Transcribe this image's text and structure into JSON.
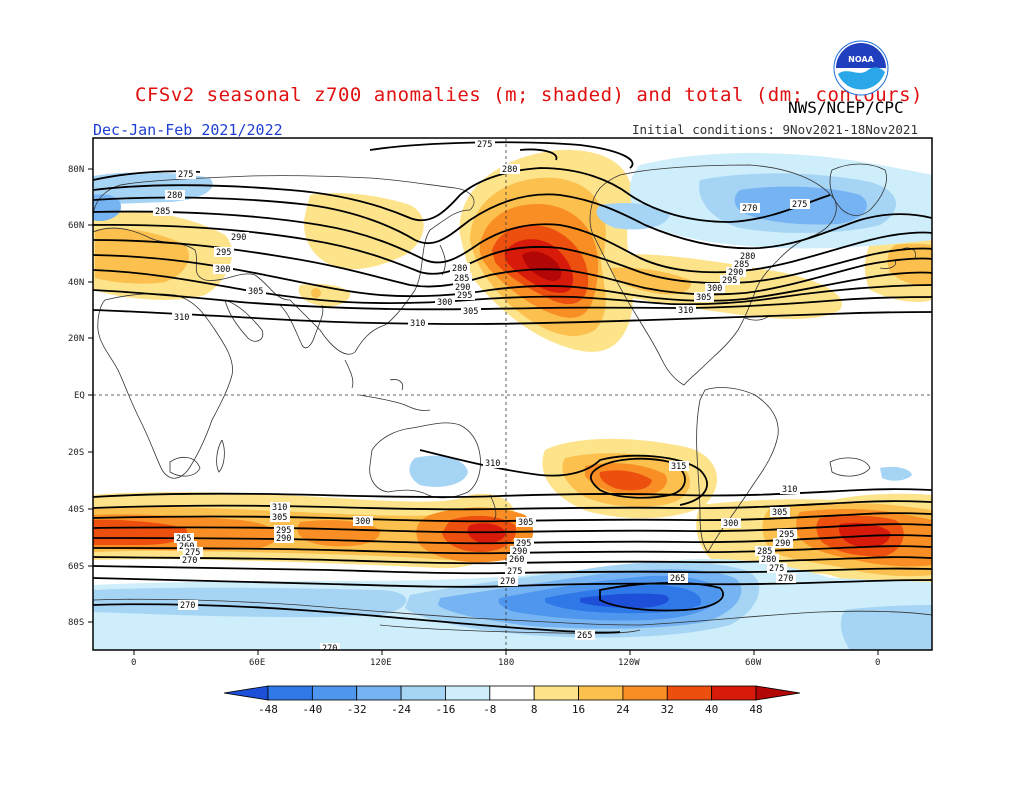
{
  "title": "CFSv2 seasonal z700 anomalies (m; shaded) and total (dm; contours)",
  "agency": "NWS/NCEP/CPC",
  "logo_text": "NOAA",
  "season": "Dec-Jan-Feb 2021/2022",
  "initial_conditions": "Initial conditions: 9Nov2021-18Nov2021",
  "lat_labels": [
    "80N",
    "60N",
    "40N",
    "20N",
    "EQ",
    "20S",
    "40S",
    "60S",
    "80S"
  ],
  "lon_labels": [
    "0",
    "60E",
    "120E",
    "180",
    "120W",
    "60W",
    "0"
  ],
  "colorbar": {
    "ticks": [
      "-48",
      "-40",
      "-32",
      "-24",
      "-16",
      "-8",
      "8",
      "16",
      "24",
      "32",
      "40",
      "48"
    ],
    "colors": [
      "#1e4fd8",
      "#2e78e8",
      "#4f96ee",
      "#76b3f2",
      "#a6d4f5",
      "#cdeefa",
      "#ffffff",
      "#fde38a",
      "#fcc04e",
      "#f98f24",
      "#ec4f0e",
      "#d81a0a",
      "#b30606"
    ]
  },
  "contour_labels": [
    "275",
    "280",
    "285",
    "290",
    "295",
    "300",
    "305",
    "310",
    "315",
    "270",
    "265",
    "260"
  ]
}
